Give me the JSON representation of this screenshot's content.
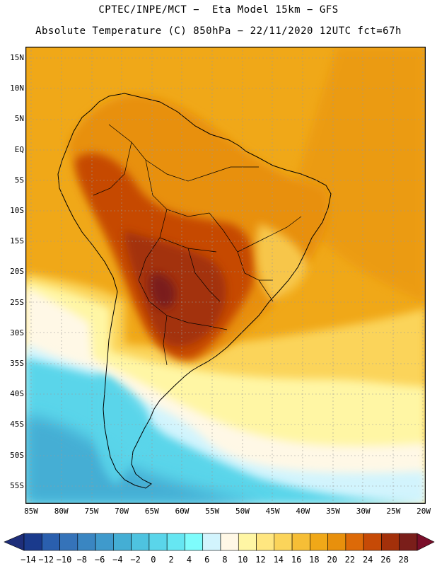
{
  "title_line1": "CPTEC/INPE/MCT −  Eta Model 15km − GFS",
  "title_line2": "Absolute Temperature (C) 850hPa − 22/11/2020 12UTC fct=67h",
  "y_axis": {
    "labels": [
      "15N",
      "10N",
      "5N",
      "EQ",
      "5S",
      "10S",
      "15S",
      "20S",
      "25S",
      "30S",
      "35S",
      "40S",
      "45S",
      "50S",
      "55S"
    ]
  },
  "x_axis": {
    "labels": [
      "85W",
      "80W",
      "75W",
      "70W",
      "65W",
      "60W",
      "55W",
      "50W",
      "45W",
      "40W",
      "35W",
      "30W",
      "25W",
      "20W"
    ]
  },
  "colorbar": {
    "labels": [
      "-14",
      "-12",
      "-10",
      "-8",
      "-6",
      "-4",
      "-2",
      "0",
      "2",
      "4",
      "6",
      "8",
      "10",
      "12",
      "14",
      "16",
      "18",
      "20",
      "22",
      "24",
      "26",
      "28"
    ],
    "colors": [
      "#1a3a8c",
      "#2a5fae",
      "#3573b9",
      "#3a86c2",
      "#3f9acc",
      "#44aed4",
      "#4ec3e0",
      "#5ad5ea",
      "#66e6f2",
      "#7efcfc",
      "#d2f4fd",
      "#fff8e6",
      "#fff6a4",
      "#ffe680",
      "#fbd45a",
      "#f6be36",
      "#f0a818",
      "#e8900c",
      "#dd6a08",
      "#c64a06",
      "#a3300a",
      "#7a1e1a"
    ],
    "under_color": "#1e2e7a",
    "over_color": "#7a0e2a"
  },
  "map_colors": {
    "land_hot": "#c64a06",
    "land_max": "#a3300a",
    "land_peak": "#7a1e1a",
    "ocean_warm": "#f0a818",
    "ocean_mid": "#fbd45a",
    "ocean_mild": "#fff6a4",
    "ocean_cool": "#d2f4fd",
    "ocean_cold": "#5ad5ea",
    "ocean_colder": "#44aed4",
    "andes": "#e8900c"
  }
}
